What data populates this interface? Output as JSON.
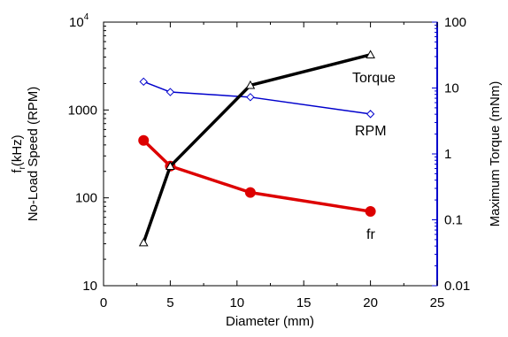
{
  "chart_data": {
    "type": "line",
    "x_axis": {
      "label": "Diameter (mm)",
      "range": [
        0,
        25
      ],
      "ticks": [
        "0",
        "5",
        "10",
        "15",
        "20",
        "25"
      ]
    },
    "left_axis": {
      "label_line1": "f_r(kHz)",
      "label_sub_char": "r",
      "label_prefix": "f",
      "label_suffix": "(kHz)",
      "label_line2": "No-Load Speed (RPM)",
      "scale": "log",
      "range": [
        10,
        10000
      ],
      "ticks": [
        "10",
        "100",
        "1000"
      ],
      "top_tick_base": "10",
      "top_tick_exp": "4",
      "color": "#000000"
    },
    "right_axis": {
      "label": "Maximum Torque (mNm)",
      "scale": "log",
      "range": [
        0.01,
        100
      ],
      "ticks": [
        "0.01",
        "0.1",
        "1",
        "10",
        "100"
      ],
      "color": "#0000cc"
    },
    "series": [
      {
        "name": "Torque",
        "axis": "right",
        "color": "#000000",
        "marker": "open-triangle",
        "x": [
          3,
          5,
          11,
          20
        ],
        "y": [
          0.045,
          0.65,
          11,
          32
        ]
      },
      {
        "name": "RPM",
        "axis": "left",
        "color": "#0000cc",
        "marker": "open-diamond",
        "x": [
          3,
          5,
          11,
          20
        ],
        "y": [
          2100,
          1600,
          1400,
          900
        ]
      },
      {
        "name": "fr",
        "axis": "left",
        "color": "#dd0000",
        "marker": "filled-circle",
        "x": [
          3,
          5,
          11,
          20
        ],
        "y": [
          450,
          230,
          115,
          70
        ]
      }
    ],
    "grid": false,
    "legend": "inline labels"
  }
}
